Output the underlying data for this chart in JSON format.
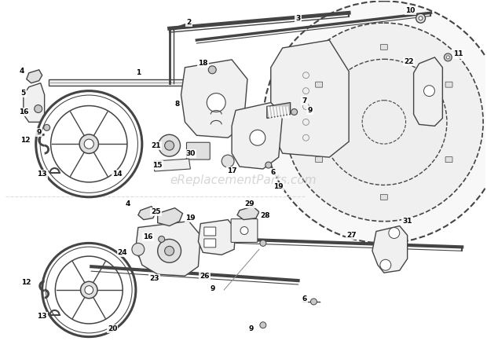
{
  "background_color": "#ffffff",
  "watermark_text": "eReplacementParts.com",
  "watermark_color": "#bbbbbb",
  "watermark_fontsize": 11,
  "fig_width": 6.2,
  "fig_height": 4.34,
  "dpi": 100,
  "line_color": "#444444",
  "light_line_color": "#888888",
  "fill_light": "#f0f0f0",
  "fill_mid": "#e0e0e0",
  "fill_dark": "#c8c8c8"
}
